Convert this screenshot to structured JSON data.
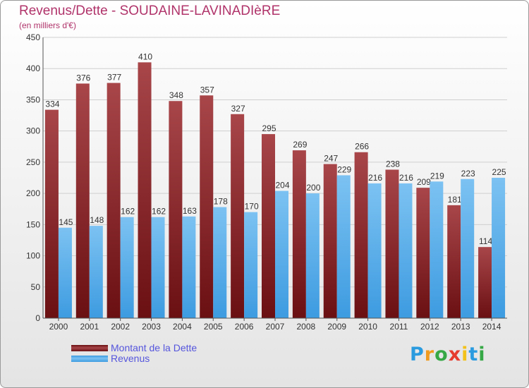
{
  "title": "Revenus/Dette - SOUDAINE-LAVINADIèRE",
  "subtitle": "(en milliers d'€)",
  "brand": {
    "letters": [
      "P",
      "r",
      "o",
      "x",
      "i",
      "t",
      "i"
    ],
    "colors": [
      "#2b9be0",
      "#f09a1e",
      "#36a845",
      "#e63c2e",
      "#f2c21b",
      "#2b9be0",
      "#36a845"
    ]
  },
  "colors": {
    "debt": "#6a0f12",
    "debt_light": "#a8464a",
    "revenue": "#3d9be0",
    "revenue_light": "#7cc2f2",
    "title": "#b0336a",
    "legend_text": "#5555dd"
  },
  "chart_data": {
    "type": "bar",
    "title": "Revenus/Dette - SOUDAINE-LAVINADIèRE",
    "subtitle": "(en milliers d'€)",
    "categories": [
      "2000",
      "2001",
      "2002",
      "2003",
      "2004",
      "2005",
      "2006",
      "2007",
      "2008",
      "2009",
      "2010",
      "2011",
      "2012",
      "2013",
      "2014"
    ],
    "series": [
      {
        "name": "Montant de la Dette",
        "values": [
          334,
          376,
          377,
          410,
          348,
          357,
          327,
          295,
          269,
          247,
          266,
          238,
          209,
          181,
          114
        ]
      },
      {
        "name": "Revenus",
        "values": [
          145,
          148,
          162,
          162,
          163,
          178,
          170,
          204,
          200,
          229,
          216,
          216,
          219,
          223,
          225
        ]
      }
    ],
    "ylim": [
      0,
      450
    ],
    "yticks": [
      0,
      50,
      100,
      150,
      200,
      250,
      300,
      350,
      400,
      450
    ],
    "grid": true,
    "legend": "bottom-left"
  }
}
